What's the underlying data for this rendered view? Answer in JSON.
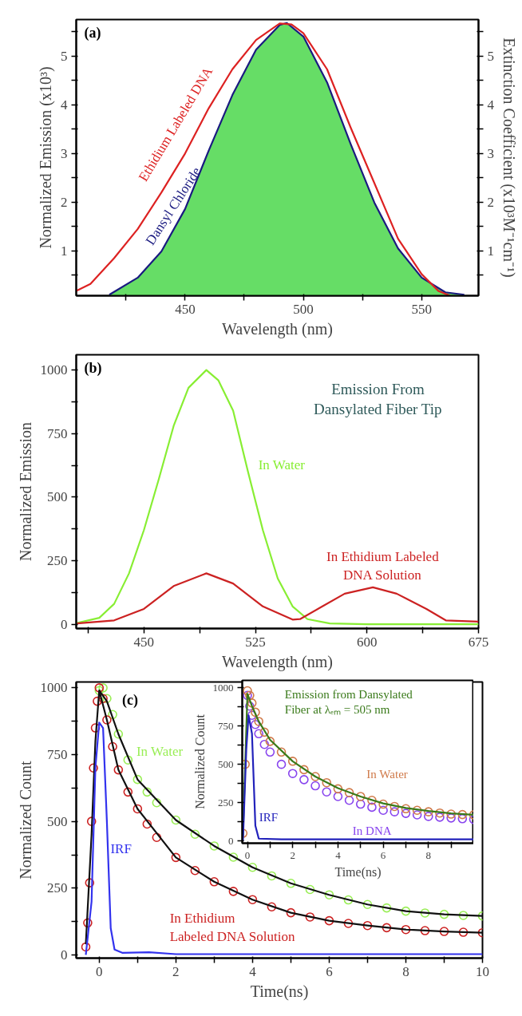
{
  "chart_data": [
    {
      "type": "line",
      "xlabel": "Wavelength (nm)",
      "ylabel": "Normalized Emission (x10³)",
      "y2label": "Extinction Coefficient (x10³M⁻¹cm⁻¹)",
      "annotations": [
        "(a)"
      ],
      "xlim": [
        404,
        574
      ],
      "ylim": [
        0.08,
        5.75
      ],
      "y2lim": [
        0.08,
        5.75
      ],
      "xticks": [
        {
          "value": 425,
          "label": null
        },
        450,
        {
          "value": 475,
          "label": null
        },
        500,
        {
          "value": 525,
          "label": null
        },
        550
      ],
      "yticks": [
        {
          "value": 0.5,
          "label": null
        },
        1,
        {
          "value": 1.5,
          "label": null
        },
        2,
        {
          "value": 2.5,
          "label": null
        },
        3,
        {
          "value": 3.5,
          "label": null
        },
        4,
        {
          "value": 4.5,
          "label": null
        },
        5,
        {
          "value": 5.5,
          "label": null
        }
      ],
      "y2ticks": [
        {
          "value": 0.5,
          "label": null
        },
        1,
        {
          "value": 1.5,
          "label": null
        },
        2,
        {
          "value": 2.5,
          "label": null
        },
        3,
        {
          "value": 3.5,
          "label": null
        },
        4,
        {
          "value": 4.5,
          "label": null
        },
        5,
        {
          "value": 5.5,
          "label": null
        }
      ],
      "series": [
        {
          "type": "area",
          "color": "#66dd66",
          "x": [
            418,
            430,
            440,
            450,
            460,
            470,
            480,
            490,
            493,
            500,
            510,
            520,
            530,
            540,
            550,
            560,
            568
          ],
          "values": [
            0.1,
            0.45,
            0.99,
            1.86,
            3.06,
            4.2,
            5.13,
            5.64,
            5.68,
            5.4,
            4.46,
            3.19,
            1.99,
            1.05,
            0.45,
            0.15,
            0.1
          ]
        },
        {
          "name": "Dansyl Chloride",
          "color": "#1a1a80",
          "x": [
            418,
            430,
            440,
            450,
            460,
            470,
            480,
            490,
            493,
            500,
            510,
            520,
            530,
            540,
            550,
            560,
            568
          ],
          "values": [
            0.1,
            0.45,
            0.99,
            1.86,
            3.06,
            4.2,
            5.13,
            5.64,
            5.68,
            5.4,
            4.46,
            3.19,
            1.99,
            1.05,
            0.45,
            0.15,
            0.1
          ]
        },
        {
          "name": "Ethidium Labeled DNA",
          "color": "#dd2222",
          "x": [
            404,
            410,
            420,
            430,
            440,
            450,
            460,
            470,
            480,
            490,
            495,
            500,
            510,
            520,
            530,
            540,
            550,
            557,
            562
          ],
          "values": [
            0.18,
            0.32,
            0.85,
            1.45,
            2.2,
            3.0,
            3.93,
            4.73,
            5.33,
            5.67,
            5.65,
            5.47,
            4.73,
            3.53,
            2.39,
            1.25,
            0.52,
            0.18,
            0.08
          ]
        }
      ]
    },
    {
      "type": "line",
      "xlabel": "Wavelength (nm)",
      "ylabel": "Normalized Emission",
      "annotations": [
        "(b)",
        "Emission From Dansylated Fiber Tip"
      ],
      "xlim": [
        404.5,
        675
      ],
      "ylim": [
        -17,
        1060
      ],
      "xticks": [
        {
          "value": 412.5,
          "label": null
        },
        450,
        {
          "value": 487.5,
          "label": null
        },
        525,
        {
          "value": 562.5,
          "label": null
        },
        600,
        {
          "value": 637.5,
          "label": null
        },
        675
      ],
      "yticks": [
        0,
        {
          "value": 125,
          "label": null
        },
        250,
        {
          "value": 375,
          "label": null
        },
        500,
        {
          "value": 625,
          "label": null
        },
        750,
        {
          "value": 875,
          "label": null
        },
        1000
      ],
      "series": [
        {
          "name": "In Water",
          "color": "#88ee33",
          "x": [
            405,
            420,
            430,
            440,
            450,
            460,
            470,
            480,
            492,
            500,
            510,
            520,
            530,
            540,
            550,
            560,
            575,
            600,
            675
          ],
          "values": [
            5,
            25,
            80,
            200,
            370,
            570,
            780,
            930,
            1000,
            960,
            840,
            600,
            370,
            180,
            70,
            20,
            3,
            0,
            0
          ]
        },
        {
          "name": "In Ethidium Labeled DNA Solution",
          "color": "#cc2222",
          "x": [
            405,
            430,
            450,
            470,
            492,
            510,
            530,
            550,
            555,
            570,
            585,
            604,
            620,
            640,
            653,
            675
          ],
          "values": [
            3,
            15,
            60,
            150,
            200,
            160,
            70,
            18,
            20,
            70,
            120,
            145,
            120,
            60,
            15,
            10
          ]
        }
      ]
    },
    {
      "type": "line",
      "xlabel": "Time(ns)",
      "ylabel": "Normalized Count",
      "annotations": [
        "(c)"
      ],
      "xlim": [
        -0.6,
        10
      ],
      "ylim": [
        -12,
        1022
      ],
      "xticks": [
        0,
        {
          "value": 1,
          "label": null
        },
        2,
        {
          "value": 3,
          "label": null
        },
        4,
        {
          "value": 5,
          "label": null
        },
        6,
        {
          "value": 7,
          "label": null
        },
        8,
        {
          "value": 9,
          "label": null
        },
        10
      ],
      "yticks": [
        0,
        {
          "value": 125,
          "label": null
        },
        250,
        {
          "value": 375,
          "label": null
        },
        500,
        {
          "value": 625,
          "label": null
        },
        750,
        {
          "value": 875,
          "label": null
        },
        1000
      ],
      "series": [
        {
          "name": "In Water",
          "type": "scatter",
          "marker": "circle",
          "color": "#99ee55",
          "x": [
            0,
            0.1,
            0.2,
            0.35,
            0.5,
            0.75,
            1,
            1.25,
            1.5,
            2,
            2.5,
            3,
            3.5,
            4,
            4.5,
            5,
            5.5,
            6,
            6.5,
            7,
            7.5,
            8,
            8.5,
            9,
            9.5,
            10
          ],
          "values": [
            990,
            1000,
            960,
            900,
            827,
            730,
            657,
            610,
            570,
            505,
            452,
            408,
            366,
            328,
            296,
            268,
            245,
            225,
            206,
            189,
            176,
            164,
            157,
            152,
            148,
            146
          ]
        },
        {
          "name": "In Ethidium Labeled DNA Solution",
          "type": "scatter",
          "marker": "circle",
          "color": "#cc2222",
          "x": [
            -0.35,
            -0.3,
            -0.25,
            -0.2,
            -0.15,
            -0.1,
            -0.05,
            0,
            0.1,
            0.2,
            0.35,
            0.5,
            0.75,
            1,
            1.25,
            1.5,
            2,
            2.5,
            3,
            3.5,
            4,
            4.5,
            5,
            5.5,
            6,
            6.5,
            7,
            7.5,
            8,
            8.5,
            9,
            9.5,
            10
          ],
          "values": [
            30,
            120,
            270,
            500,
            700,
            850,
            950,
            1000,
            960,
            880,
            780,
            693,
            610,
            547,
            490,
            440,
            365,
            316,
            274,
            238,
            207,
            180,
            158,
            142,
            128,
            118,
            110,
            102,
            95,
            91,
            88,
            85,
            83
          ]
        },
        {
          "color": "#111111",
          "x": [
            0,
            0.2,
            0.5,
            1,
            2,
            3,
            4,
            5,
            6,
            7,
            8,
            9,
            10
          ],
          "values": [
            990,
            950,
            827,
            657,
            505,
            408,
            328,
            268,
            225,
            189,
            164,
            152,
            146
          ]
        },
        {
          "color": "#111111",
          "x": [
            -0.35,
            -0.2,
            -0.1,
            0,
            0.2,
            0.5,
            1,
            2,
            3,
            4,
            5,
            6,
            7,
            8,
            9,
            10
          ],
          "values": [
            40,
            450,
            800,
            990,
            880,
            693,
            547,
            365,
            274,
            207,
            158,
            128,
            110,
            95,
            88,
            83
          ]
        },
        {
          "name": "IRF",
          "color": "#3333ee",
          "x": [
            -0.35,
            -0.2,
            -0.1,
            0,
            0.1,
            0.2,
            0.3,
            0.4,
            0.6,
            1.3,
            2,
            10
          ],
          "values": [
            0,
            200,
            700,
            870,
            850,
            500,
            100,
            20,
            8,
            10,
            3,
            3
          ]
        }
      ]
    },
    {
      "type": "line",
      "xlabel": "Time(ns)",
      "ylabel": "Normalized Count",
      "annotations": [
        "Emission from Dansylated Fiber at λₑₘ = 505 nm"
      ],
      "xlim": [
        -0.23,
        10
      ],
      "ylim": [
        -15,
        1048
      ],
      "xticks": [
        0,
        {
          "value": 1,
          "label": null
        },
        2,
        {
          "value": 3,
          "label": null
        },
        4,
        {
          "value": 5,
          "label": null
        },
        6,
        {
          "value": 7,
          "label": null
        },
        8,
        {
          "value": 9,
          "label": null
        }
      ],
      "yticks": [
        0,
        {
          "value": 125,
          "label": null
        },
        250,
        {
          "value": 375,
          "label": null
        },
        500,
        {
          "value": 625,
          "label": null
        },
        750,
        {
          "value": 875,
          "label": null
        },
        1000
      ],
      "series": [
        {
          "name": "In DNA",
          "type": "scatter",
          "marker": "circle",
          "color": "#8844ee",
          "x": [
            0,
            0.1,
            0.2,
            0.35,
            0.5,
            0.75,
            1,
            1.5,
            2,
            2.5,
            3,
            3.5,
            4,
            4.5,
            5,
            5.5,
            6,
            6.5,
            7,
            7.5,
            8,
            8.5,
            9,
            9.5,
            10
          ],
          "values": [
            950,
            880,
            820,
            760,
            700,
            630,
            580,
            500,
            440,
            400,
            360,
            320,
            290,
            265,
            240,
            220,
            200,
            190,
            180,
            170,
            160,
            155,
            150,
            145,
            140
          ]
        },
        {
          "name": "In Water",
          "type": "scatter",
          "marker": "circle",
          "color": "#d07a4a",
          "x": [
            -0.2,
            -0.1,
            0,
            0.1,
            0.2,
            0.35,
            0.5,
            0.75,
            1,
            1.5,
            2,
            2.5,
            3,
            3.5,
            4,
            4.5,
            5,
            5.5,
            6,
            6.5,
            7,
            7.5,
            8,
            8.5,
            9,
            9.5,
            10
          ],
          "values": [
            50,
            500,
            980,
            950,
            900,
            840,
            780,
            710,
            650,
            580,
            520,
            465,
            420,
            380,
            340,
            315,
            290,
            265,
            240,
            225,
            210,
            200,
            190,
            182,
            175,
            172,
            170
          ]
        },
        {
          "color": "#3a7a1a",
          "x": [
            -0.2,
            -0.1,
            0,
            0.2,
            0.5,
            1,
            2,
            3,
            4,
            5,
            6,
            7,
            8,
            9,
            10
          ],
          "values": [
            30,
            500,
            960,
            880,
            780,
            660,
            520,
            420,
            345,
            290,
            245,
            215,
            195,
            180,
            170
          ]
        },
        {
          "name": "IRF",
          "color": "#2222bb",
          "x": [
            -0.2,
            -0.05,
            0.05,
            0.2,
            0.35,
            0.5,
            1.5,
            10
          ],
          "values": [
            0,
            600,
            820,
            700,
            100,
            15,
            10,
            10
          ]
        }
      ]
    }
  ]
}
